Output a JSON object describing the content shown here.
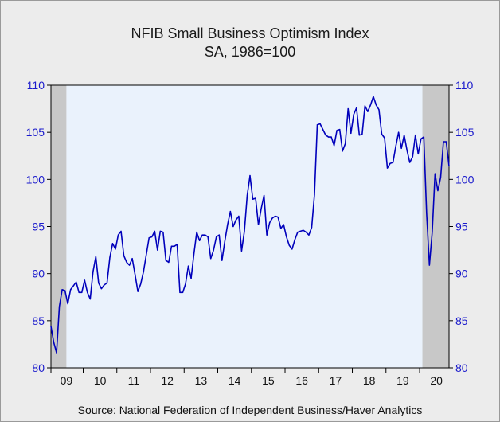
{
  "chart_data": {
    "type": "line",
    "title": "NFIB Small Business Optimism Index",
    "subtitle": "SA, 1986=100",
    "source": "Source:  National Federation of Independent Business/Haver Analytics",
    "x_start": "2009-01",
    "ylim": [
      80,
      110
    ],
    "y_ticks": [
      "80",
      "85",
      "90",
      "95",
      "100",
      "105",
      "110"
    ],
    "x_tick_labels": [
      "09",
      "10",
      "11",
      "12",
      "13",
      "14",
      "15",
      "16",
      "17",
      "18",
      "19",
      "20"
    ],
    "recession_shading": [
      {
        "start": "2009-01",
        "end": "2009-06"
      },
      {
        "start": "2020-02",
        "end": "2020-12"
      }
    ],
    "colors": {
      "line": "#0000bb",
      "plot_bg": "#eaf2fc",
      "shade": "#c8c8c8",
      "axis_text": "#1a1acc"
    },
    "grid": false,
    "series": [
      {
        "name": "",
        "values": [
          84.4,
          82.7,
          81.6,
          86.5,
          88.3,
          88.2,
          86.8,
          88.3,
          88.7,
          89.1,
          88.0,
          88.0,
          89.3,
          88.0,
          87.3,
          90.2,
          91.8,
          89.0,
          88.4,
          88.8,
          89.0,
          91.7,
          93.2,
          92.6,
          94.1,
          94.5,
          91.9,
          91.2,
          90.9,
          91.6,
          89.9,
          88.1,
          88.9,
          90.2,
          92.0,
          93.8,
          93.9,
          94.5,
          92.5,
          94.5,
          94.4,
          91.4,
          91.2,
          92.9,
          92.9,
          93.1,
          88.0,
          88.0,
          88.9,
          90.8,
          89.5,
          92.1,
          94.4,
          93.5,
          94.1,
          94.1,
          93.9,
          91.6,
          92.5,
          93.9,
          94.1,
          91.4,
          93.4,
          95.2,
          96.6,
          95.0,
          95.7,
          96.1,
          92.4,
          94.5,
          98.3,
          100.4,
          97.9,
          98.0,
          95.2,
          96.9,
          98.3,
          94.1,
          95.4,
          95.9,
          96.1,
          96.0,
          94.8,
          95.2,
          93.9,
          93.0,
          92.6,
          93.6,
          94.4,
          94.5,
          94.6,
          94.4,
          94.1,
          94.9,
          98.4,
          105.8,
          105.9,
          105.3,
          104.7,
          104.5,
          104.5,
          103.6,
          105.2,
          105.3,
          103.0,
          103.8,
          107.5,
          104.9,
          106.9,
          107.6,
          104.7,
          104.8,
          107.8,
          107.2,
          107.9,
          108.8,
          107.9,
          107.4,
          104.8,
          104.4,
          101.2,
          101.7,
          101.8,
          103.5,
          105.0,
          103.3,
          104.7,
          103.1,
          101.8,
          102.4,
          104.7,
          102.7,
          104.3,
          104.5,
          96.4,
          90.9,
          94.4,
          100.6,
          98.8,
          100.2,
          104.0,
          104.0,
          101.4
        ]
      }
    ]
  }
}
